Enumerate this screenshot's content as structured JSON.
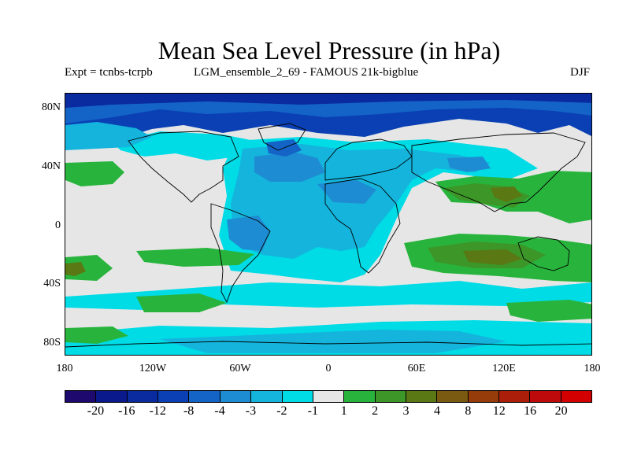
{
  "title": "Mean Sea Level Pressure (in hPa)",
  "subtitle_left": "Expt = tcnbs-tcrpb",
  "subtitle_center": "LGM_ensemble_2_69 - FAMOUS 21k-bigblue",
  "subtitle_right": "DJF",
  "map": {
    "y_ticks": [
      "80N",
      "40N",
      "0",
      "40S",
      "80S"
    ],
    "x_ticks": [
      "180",
      "120W",
      "60W",
      "0",
      "60E",
      "120E",
      "180"
    ],
    "background_color": "#e6e6e6"
  },
  "colorbar": {
    "labels": [
      "-20",
      "-16",
      "-12",
      "-8",
      "-4",
      "-3",
      "-2",
      "-1",
      "1",
      "2",
      "3",
      "4",
      "8",
      "12",
      "16",
      "20"
    ],
    "colors": [
      "#1e0a6e",
      "#0a1a8c",
      "#0a2aa0",
      "#0a40b4",
      "#1464c8",
      "#1e8cd2",
      "#14b4dc",
      "#00dce6",
      "#e6e6e6",
      "#28b43c",
      "#3c9628",
      "#5a7814",
      "#7a5a10",
      "#963c0a",
      "#aa1e0a",
      "#be0a0a",
      "#d20000"
    ]
  }
}
